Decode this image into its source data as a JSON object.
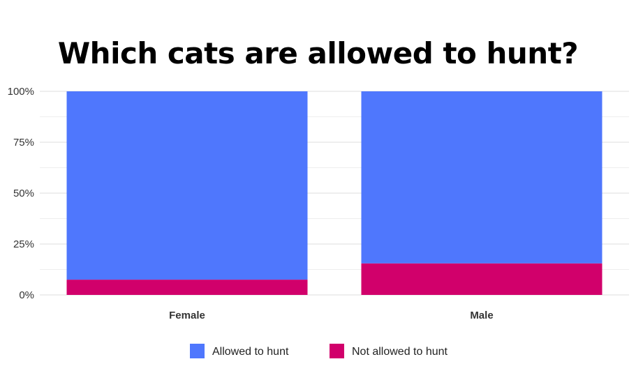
{
  "chart_data": {
    "type": "bar",
    "stacked": true,
    "title": "Which cats are allowed to hunt?",
    "categories": [
      "Female",
      "Male"
    ],
    "series": [
      {
        "name": "Not allowed to hunt",
        "values": [
          7.5,
          15.5
        ],
        "color": "#d1006b"
      },
      {
        "name": "Allowed to hunt",
        "values": [
          92.5,
          84.5
        ],
        "color": "#4f77fd"
      }
    ],
    "ylim": [
      0,
      100
    ],
    "yticks": [
      "0%",
      "25%",
      "50%",
      "75%",
      "100%"
    ],
    "ytick_values": [
      0,
      25,
      50,
      75,
      100
    ],
    "grid": true,
    "legend_position": "bottom",
    "legend_order": [
      "Allowed to hunt",
      "Not allowed to hunt"
    ]
  }
}
